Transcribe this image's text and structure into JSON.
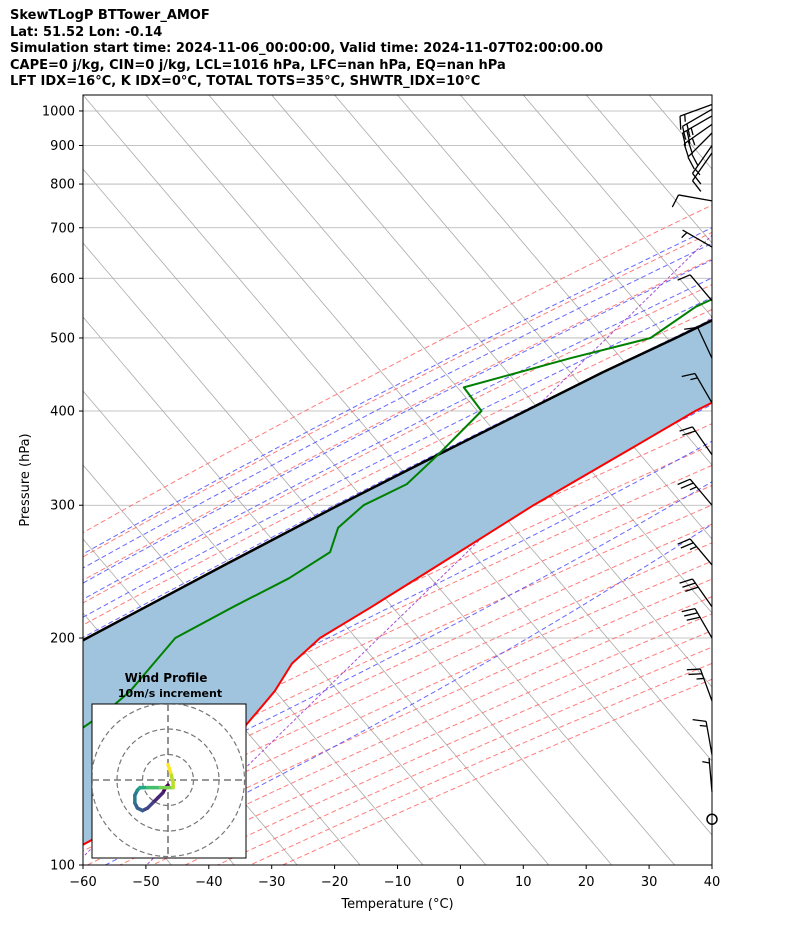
{
  "header": {
    "line1": "SkewTLogP BTTower_AMOF",
    "line2": "Lat: 51.52   Lon: -0.14",
    "line3": "Simulation start time: 2024-11-06_00:00:00, Valid time: 2024-11-07T02:00:00.00",
    "line4": "CAPE=0 j/kg, CIN=0 j/kg, LCL=1016 hPa, LFC=nan hPa, EQ=nan hPa",
    "line5": "LFT IDX=16°C, K IDX=0°C, TOTAL TOTS=35°C, SHWTR_IDX=10°C"
  },
  "colors": {
    "temperature": "#ff0000",
    "dewpoint": "#008000",
    "parcel": "#000000",
    "shade": "#a0c4de",
    "dry_adiabat": "#ff6666",
    "moist_adiabat": "#4d4dff",
    "mixing_ratio": "#9933cc",
    "isotherm": "#aaaaaa"
  },
  "chart_data": {
    "type": "skewt",
    "xlabel": "Temperature (°C)",
    "ylabel": "Pressure (hPa)",
    "xlim": [
      -60,
      40
    ],
    "ylim": [
      1050,
      100
    ],
    "grid": true,
    "xticks": [
      "−60",
      "−50",
      "−40",
      "−30",
      "−20",
      "−10",
      "0",
      "10",
      "20",
      "30",
      "40"
    ],
    "yticks": [
      "100",
      "200",
      "300",
      "400",
      "500",
      "600",
      "700",
      "800",
      "900",
      "1000"
    ],
    "temperature": [
      {
        "p": 1020,
        "t": 9
      },
      {
        "p": 1000,
        "t": 11
      },
      {
        "p": 980,
        "t": 13
      },
      {
        "p": 950,
        "t": 14
      },
      {
        "p": 900,
        "t": 13
      },
      {
        "p": 850,
        "t": 11
      },
      {
        "p": 800,
        "t": 9
      },
      {
        "p": 750,
        "t": 6
      },
      {
        "p": 700,
        "t": 3
      },
      {
        "p": 650,
        "t": 0
      },
      {
        "p": 600,
        "t": -3
      },
      {
        "p": 550,
        "t": -7
      },
      {
        "p": 500,
        "t": -12
      },
      {
        "p": 450,
        "t": -17
      },
      {
        "p": 400,
        "t": -24
      },
      {
        "p": 350,
        "t": -30
      },
      {
        "p": 300,
        "t": -37
      },
      {
        "p": 250,
        "t": -44
      },
      {
        "p": 220,
        "t": -49
      },
      {
        "p": 200,
        "t": -53
      },
      {
        "p": 185,
        "t": -54
      },
      {
        "p": 170,
        "t": -53
      },
      {
        "p": 160,
        "t": -53
      },
      {
        "p": 150,
        "t": -53
      },
      {
        "p": 140,
        "t": -54
      },
      {
        "p": 130,
        "t": -56
      },
      {
        "p": 120,
        "t": -58
      },
      {
        "p": 110,
        "t": -61
      },
      {
        "p": 100,
        "t": -66
      }
    ],
    "dewpoint": [
      {
        "p": 1020,
        "t": 9
      },
      {
        "p": 1000,
        "t": 10
      },
      {
        "p": 980,
        "t": 11
      },
      {
        "p": 950,
        "t": 11
      },
      {
        "p": 920,
        "t": 7
      },
      {
        "p": 880,
        "t": -1
      },
      {
        "p": 840,
        "t": -12
      },
      {
        "p": 800,
        "t": -22
      },
      {
        "p": 750,
        "t": -31
      },
      {
        "p": 700,
        "t": -29
      },
      {
        "p": 650,
        "t": -27
      },
      {
        "p": 600,
        "t": -32
      },
      {
        "p": 550,
        "t": -38
      },
      {
        "p": 500,
        "t": -41
      },
      {
        "p": 470,
        "t": -51
      },
      {
        "p": 430,
        "t": -64
      },
      {
        "p": 400,
        "t": -58
      },
      {
        "p": 350,
        "t": -59
      },
      {
        "p": 320,
        "t": -60
      },
      {
        "p": 300,
        "t": -64
      },
      {
        "p": 280,
        "t": -65
      },
      {
        "p": 260,
        "t": -63
      },
      {
        "p": 240,
        "t": -66
      },
      {
        "p": 220,
        "t": -71
      },
      {
        "p": 200,
        "t": -76
      },
      {
        "p": 185,
        "t": -76
      },
      {
        "p": 170,
        "t": -76
      },
      {
        "p": 160,
        "t": -77
      },
      {
        "p": 150,
        "t": -79
      },
      {
        "p": 140,
        "t": -81
      },
      {
        "p": 130,
        "t": -83
      },
      {
        "p": 120,
        "t": -82
      },
      {
        "p": 100,
        "t": -79
      }
    ],
    "parcel": [
      {
        "p": 1020,
        "t": 9
      },
      {
        "p": 1000,
        "t": 7.5
      },
      {
        "p": 950,
        "t": 4.2
      },
      {
        "p": 900,
        "t": 0.9
      },
      {
        "p": 850,
        "t": -2.5
      },
      {
        "p": 800,
        "t": -6.5
      },
      {
        "p": 750,
        "t": -10.5
      },
      {
        "p": 700,
        "t": -15
      },
      {
        "p": 650,
        "t": -20
      },
      {
        "p": 600,
        "t": -25
      },
      {
        "p": 550,
        "t": -31
      },
      {
        "p": 500,
        "t": -37
      },
      {
        "p": 450,
        "t": -44
      },
      {
        "p": 400,
        "t": -51
      },
      {
        "p": 350,
        "t": -59
      },
      {
        "p": 300,
        "t": -68
      },
      {
        "p": 250,
        "t": -78
      },
      {
        "p": 200,
        "t": -90
      },
      {
        "p": 150,
        "t": -104
      },
      {
        "p": 100,
        "t": -123
      }
    ],
    "wind_barbs": [
      {
        "p": 1020,
        "speed_kt": 15,
        "dir": 250
      },
      {
        "p": 1005,
        "speed_kt": 20,
        "dir": 240
      },
      {
        "p": 985,
        "speed_kt": 25,
        "dir": 240
      },
      {
        "p": 960,
        "speed_kt": 25,
        "dir": 235
      },
      {
        "p": 935,
        "speed_kt": 20,
        "dir": 225
      },
      {
        "p": 900,
        "speed_kt": 15,
        "dir": 215
      },
      {
        "p": 880,
        "speed_kt": 10,
        "dir": 215
      },
      {
        "p": 760,
        "speed_kt": 10,
        "dir": 280
      },
      {
        "p": 660,
        "speed_kt": 5,
        "dir": 300
      },
      {
        "p": 560,
        "speed_kt": 10,
        "dir": 320
      },
      {
        "p": 470,
        "speed_kt": 10,
        "dir": 335
      },
      {
        "p": 410,
        "speed_kt": 15,
        "dir": 330
      },
      {
        "p": 350,
        "speed_kt": 20,
        "dir": 325
      },
      {
        "p": 300,
        "speed_kt": 25,
        "dir": 320
      },
      {
        "p": 250,
        "speed_kt": 25,
        "dir": 320
      },
      {
        "p": 220,
        "speed_kt": 30,
        "dir": 325
      },
      {
        "p": 200,
        "speed_kt": 30,
        "dir": 330
      },
      {
        "p": 165,
        "speed_kt": 25,
        "dir": 340
      },
      {
        "p": 140,
        "speed_kt": 15,
        "dir": 350
      },
      {
        "p": 125,
        "speed_kt": 5,
        "dir": 355
      },
      {
        "p": 115,
        "speed_kt": 0,
        "dir": 0
      }
    ],
    "hodograph": {
      "title": "Wind Profile",
      "subtitle": "10m/s increment",
      "rings_ms": [
        10,
        20,
        30
      ],
      "u": [
        0,
        -1,
        -2,
        -4,
        -6,
        -8,
        -10,
        -12,
        -13,
        -13,
        -12,
        -11,
        -10,
        -8,
        -6,
        -3,
        0,
        2,
        2,
        1,
        0
      ],
      "v": [
        -2,
        -3,
        -5,
        -7,
        -9,
        -11,
        -12,
        -11,
        -9,
        -6,
        -4,
        -3,
        -3,
        -3,
        -3,
        -3,
        -3,
        -3,
        -1,
        3,
        6
      ]
    }
  }
}
